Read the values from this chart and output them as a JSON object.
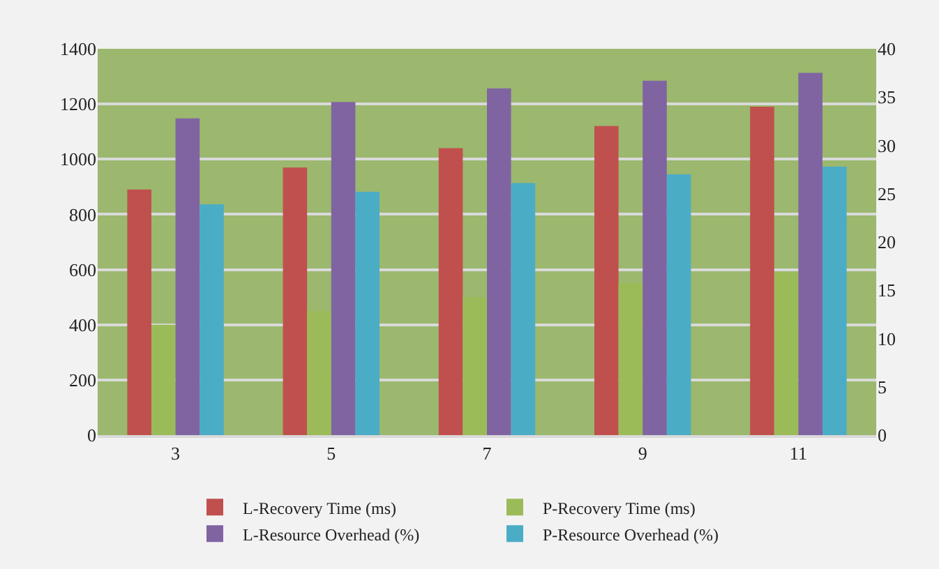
{
  "chart_data": {
    "type": "bar",
    "categories": [
      "3",
      "5",
      "7",
      "9",
      "11"
    ],
    "series": [
      {
        "name": "L-Recovery Time (ms)",
        "color": "#c0504d",
        "values": [
          890,
          970,
          1040,
          1120,
          1190
        ]
      },
      {
        "name": "P-Recovery Time (ms)",
        "color": "#9bbb59",
        "values": [
          400,
          450,
          500,
          550,
          590
        ]
      },
      {
        "name": "L-Resource Overhead (%)",
        "color": "#8064a2",
        "axis": "y2",
        "values": [
          32.8,
          34.5,
          35.9,
          36.7,
          37.5
        ]
      },
      {
        "name": "P-Resource Overhead (%)",
        "color": "#4bacc6",
        "axis": "y2",
        "values": [
          23.9,
          25.2,
          26.1,
          27.0,
          27.8
        ]
      }
    ],
    "ylim": [
      0,
      1400
    ],
    "yticks": [
      0,
      200,
      400,
      600,
      800,
      1000,
      1200,
      1400
    ],
    "y2lim": [
      0,
      40
    ],
    "y2ticks": [
      0,
      5,
      10,
      15,
      20,
      25,
      30,
      35,
      40
    ],
    "grid": "y",
    "legend": "bottom"
  }
}
